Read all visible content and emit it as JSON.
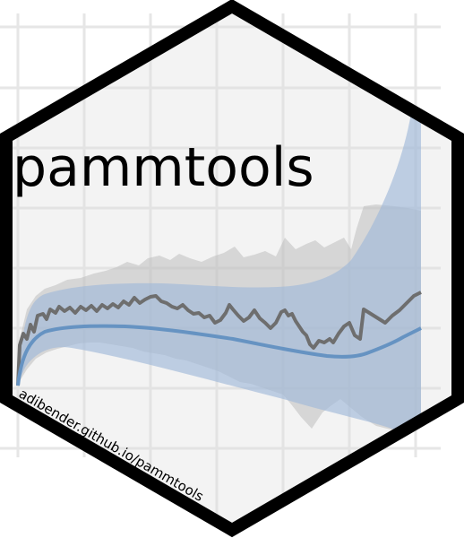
{
  "sticker": {
    "title": "pammtools",
    "url": "adibender.github.io/pammtools"
  },
  "colors": {
    "hex_fill": "#f3f3f3",
    "hex_border": "#000000",
    "grid": "#e6e6e6",
    "gray_band": "#bdbdbd",
    "gray_line": "#6e6e6e",
    "blue_band": "#9fb9d8",
    "blue_line": "#6693c2"
  }
}
